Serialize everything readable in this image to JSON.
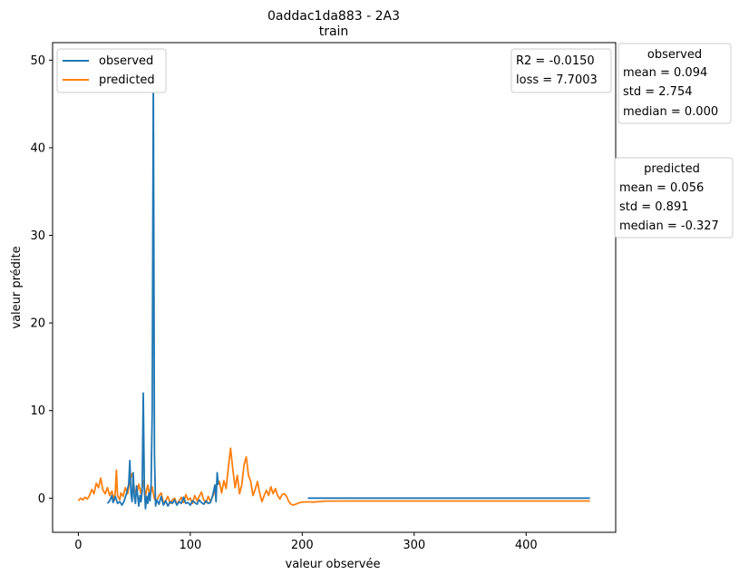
{
  "chart_data": {
    "type": "line",
    "title": "0addac1da883 - 2A3",
    "subtitle": "train",
    "xlabel": "valeur observée",
    "ylabel": "valeur prédite",
    "xlim": [
      -23,
      480
    ],
    "ylim": [
      -3.9,
      52
    ],
    "x_ticks": [
      0,
      100,
      200,
      300,
      400
    ],
    "y_ticks": [
      0,
      10,
      20,
      30,
      40,
      50
    ],
    "legend_position": "top-left",
    "series": [
      {
        "name": "observed",
        "color": "#1f77b4",
        "points": [
          [
            26,
            -0.6
          ],
          [
            28,
            -0.3
          ],
          [
            30,
            0.3
          ],
          [
            31,
            -0.5
          ],
          [
            33,
            0.2
          ],
          [
            35,
            -0.6
          ],
          [
            37,
            -0.4
          ],
          [
            39,
            -0.8
          ],
          [
            41,
            -0.3
          ],
          [
            43,
            0.5
          ],
          [
            45,
            1.6
          ],
          [
            46,
            4.3
          ],
          [
            47,
            0.6
          ],
          [
            48,
            -0.4
          ],
          [
            49,
            2.9
          ],
          [
            50,
            0.2
          ],
          [
            51,
            -0.6
          ],
          [
            52,
            1.4
          ],
          [
            53,
            0.3
          ],
          [
            54,
            -0.9
          ],
          [
            55,
            0.3
          ],
          [
            56,
            -0.4
          ],
          [
            57,
            0.8
          ],
          [
            58,
            12.0
          ],
          [
            59,
            1.0
          ],
          [
            60,
            -1.2
          ],
          [
            61,
            0.2
          ],
          [
            62,
            -0.6
          ],
          [
            63,
            0.6
          ],
          [
            64,
            -0.3
          ],
          [
            65,
            1.5
          ],
          [
            66,
            10.0
          ],
          [
            67,
            48.0
          ],
          [
            68,
            5.0
          ],
          [
            69,
            -0.9
          ],
          [
            70,
            -0.2
          ],
          [
            72,
            -0.7
          ],
          [
            74,
            0.2
          ],
          [
            76,
            -0.8
          ],
          [
            78,
            -0.3
          ],
          [
            80,
            -0.9
          ],
          [
            82,
            -0.4
          ],
          [
            84,
            -0.6
          ],
          [
            86,
            -0.2
          ],
          [
            88,
            -0.8
          ],
          [
            90,
            -0.4
          ],
          [
            92,
            -0.6
          ],
          [
            94,
            0.1
          ],
          [
            96,
            -0.6
          ],
          [
            98,
            -0.5
          ],
          [
            100,
            -0.8
          ],
          [
            102,
            -0.3
          ],
          [
            104,
            -0.5
          ],
          [
            106,
            -0.7
          ],
          [
            108,
            -0.2
          ],
          [
            110,
            -0.5
          ],
          [
            112,
            -0.7
          ],
          [
            114,
            -0.3
          ],
          [
            116,
            -0.6
          ],
          [
            118,
            -0.5
          ],
          [
            120,
            0.3
          ],
          [
            122,
            1.5
          ],
          [
            123,
            -0.4
          ],
          [
            124,
            2.9
          ],
          [
            125,
            1.5
          ]
        ],
        "flat_segment": [
          [
            205,
            0.0
          ],
          [
            457,
            0.0
          ]
        ]
      },
      {
        "name": "predicted",
        "color": "#ff7f0e",
        "points": [
          [
            0,
            -0.3
          ],
          [
            2,
            0.0
          ],
          [
            4,
            -0.2
          ],
          [
            6,
            0.1
          ],
          [
            8,
            -0.1
          ],
          [
            10,
            0.3
          ],
          [
            12,
            1.0
          ],
          [
            14,
            0.5
          ],
          [
            16,
            1.7
          ],
          [
            18,
            1.2
          ],
          [
            20,
            2.3
          ],
          [
            22,
            0.9
          ],
          [
            24,
            0.5
          ],
          [
            26,
            1.2
          ],
          [
            28,
            0.3
          ],
          [
            30,
            0.8
          ],
          [
            32,
            -0.3
          ],
          [
            33,
            0.7
          ],
          [
            34,
            3.2
          ],
          [
            35,
            0.3
          ],
          [
            37,
            -0.2
          ],
          [
            38,
            0.6
          ],
          [
            40,
            0.2
          ],
          [
            42,
            1.2
          ],
          [
            44,
            0.5
          ],
          [
            46,
            2.1
          ],
          [
            48,
            2.8
          ],
          [
            50,
            1.0
          ],
          [
            52,
            0.4
          ],
          [
            54,
            1.6
          ],
          [
            56,
            0.5
          ],
          [
            58,
            2.0
          ],
          [
            60,
            0.3
          ],
          [
            62,
            1.5
          ],
          [
            64,
            0.2
          ],
          [
            66,
            1.3
          ],
          [
            68,
            -0.1
          ],
          [
            70,
            -0.3
          ],
          [
            72,
            0.3
          ],
          [
            74,
            0.6
          ],
          [
            76,
            -0.5
          ],
          [
            78,
            -0.3
          ],
          [
            80,
            0.2
          ],
          [
            82,
            -0.6
          ],
          [
            84,
            -0.2
          ],
          [
            86,
            0.0
          ],
          [
            88,
            -0.7
          ],
          [
            90,
            -0.3
          ],
          [
            92,
            0.1
          ],
          [
            94,
            -0.5
          ],
          [
            96,
            0.4
          ],
          [
            98,
            -0.2
          ],
          [
            100,
            0.0
          ],
          [
            102,
            -0.6
          ],
          [
            104,
            0.3
          ],
          [
            106,
            -0.3
          ],
          [
            108,
            0.2
          ],
          [
            110,
            0.7
          ],
          [
            112,
            -0.2
          ],
          [
            114,
            -0.5
          ],
          [
            116,
            0.2
          ],
          [
            118,
            -0.4
          ],
          [
            120,
            0.2
          ],
          [
            122,
            0.8
          ],
          [
            124,
            1.7
          ],
          [
            126,
            1.9
          ],
          [
            128,
            0.6
          ],
          [
            130,
            2.0
          ],
          [
            132,
            1.1
          ],
          [
            134,
            3.5
          ],
          [
            136,
            5.7
          ],
          [
            138,
            3.3
          ],
          [
            140,
            1.2
          ],
          [
            142,
            2.6
          ],
          [
            144,
            0.5
          ],
          [
            146,
            1.5
          ],
          [
            148,
            3.8
          ],
          [
            150,
            4.7
          ],
          [
            152,
            2.6
          ],
          [
            154,
            1.9
          ],
          [
            156,
            0.3
          ],
          [
            158,
            1.0
          ],
          [
            160,
            1.9
          ],
          [
            162,
            0.6
          ],
          [
            164,
            -0.4
          ],
          [
            166,
            0.3
          ],
          [
            168,
            0.9
          ],
          [
            170,
            0.3
          ],
          [
            172,
            1.3
          ],
          [
            174,
            0.5
          ],
          [
            176,
            1.1
          ],
          [
            178,
            0.3
          ],
          [
            180,
            -0.1
          ],
          [
            182,
            0.4
          ],
          [
            184,
            0.5
          ],
          [
            186,
            0.2
          ],
          [
            188,
            -0.4
          ],
          [
            190,
            -0.7
          ],
          [
            192,
            -0.8
          ],
          [
            194,
            -0.7
          ],
          [
            196,
            -0.6
          ],
          [
            198,
            -0.5
          ],
          [
            200,
            -0.45
          ],
          [
            205,
            -0.42
          ],
          [
            210,
            -0.45
          ],
          [
            220,
            -0.34
          ],
          [
            240,
            -0.33
          ],
          [
            457,
            -0.33
          ]
        ]
      }
    ],
    "annotations": {
      "metrics": [
        "R2 = -0.0150",
        "loss = 7.7003"
      ],
      "observed_stats": {
        "title": "observed",
        "lines": [
          "mean = 0.094",
          "std = 2.754",
          "median = 0.000"
        ]
      },
      "predicted_stats": {
        "title": "predicted",
        "lines": [
          "mean = 0.056",
          "std = 0.891",
          "median = -0.327"
        ]
      }
    }
  }
}
